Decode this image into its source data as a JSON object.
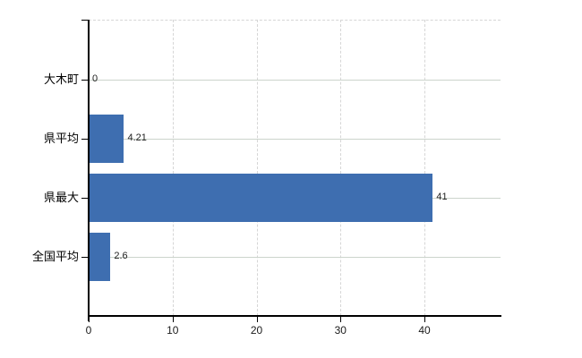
{
  "chart_data": {
    "type": "bar",
    "orientation": "horizontal",
    "title": "",
    "xlabel": "",
    "ylabel": "",
    "categories": [
      "大木町",
      "県平均",
      "県最大",
      "全国平均"
    ],
    "values": [
      0,
      4.21,
      41,
      2.6
    ],
    "value_labels": [
      "0",
      "4.21",
      "41",
      "2.6"
    ],
    "x_ticks": [
      0,
      10,
      20,
      30,
      40
    ],
    "x_tick_labels": [
      "0",
      "10",
      "20",
      "30",
      "40"
    ],
    "xlim": [
      0,
      49
    ],
    "grid": true,
    "legend": "none",
    "colors": {
      "bar": "#3e6eb0",
      "axis": "#000000",
      "gridline_horizontal": "#ccd4cc",
      "gridline_vertical": "#d6d6d6",
      "plot_top_border": "#d6d6d6",
      "category_text": "#000000",
      "value_text": "#222222",
      "tick_text": "#1a1a1a",
      "background": "#ffffff"
    }
  }
}
